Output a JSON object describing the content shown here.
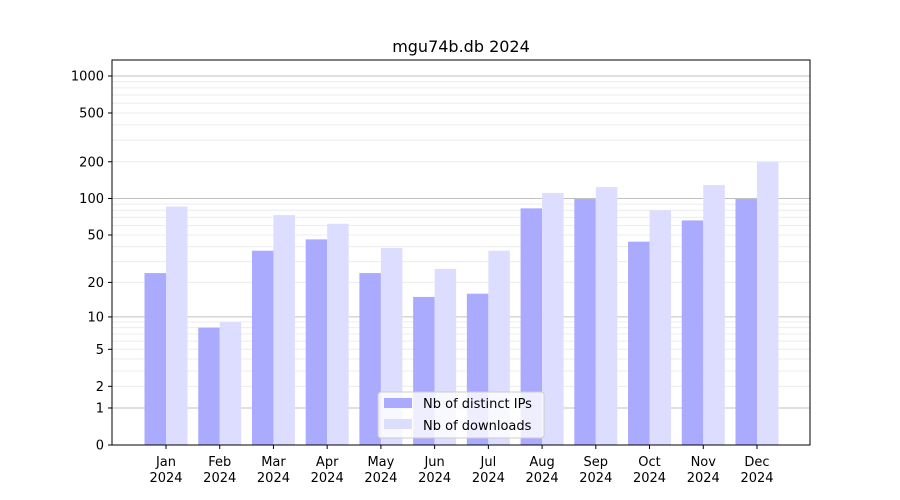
{
  "chart_data": {
    "type": "bar",
    "title": "mgu74b.db 2024",
    "yscale": "symlog",
    "ylim": [
      0,
      1350
    ],
    "yticks": [
      0,
      1,
      2,
      5,
      10,
      20,
      50,
      100,
      200,
      500,
      1000
    ],
    "ytick_labels": [
      "0",
      "1",
      "2",
      "5",
      "10",
      "20",
      "50",
      "100",
      "200",
      "500",
      "1000"
    ],
    "grid": true,
    "categories": [
      "Jan\n2024",
      "Feb\n2024",
      "Mar\n2024",
      "Apr\n2024",
      "May\n2024",
      "Jun\n2024",
      "Jul\n2024",
      "Aug\n2024",
      "Sep\n2024",
      "Oct\n2024",
      "Nov\n2024",
      "Dec\n2024"
    ],
    "series": [
      {
        "name": "Nb of distinct IPs",
        "color": "#aaaaff",
        "values": [
          24,
          8,
          37,
          46,
          24,
          15,
          16,
          83,
          99,
          44,
          66,
          99
        ]
      },
      {
        "name": "Nb of downloads",
        "color": "#ddddff",
        "values": [
          86,
          9,
          73,
          62,
          39,
          26,
          37,
          111,
          124,
          80,
          129,
          200
        ]
      }
    ],
    "legend": "bottom-center"
  }
}
